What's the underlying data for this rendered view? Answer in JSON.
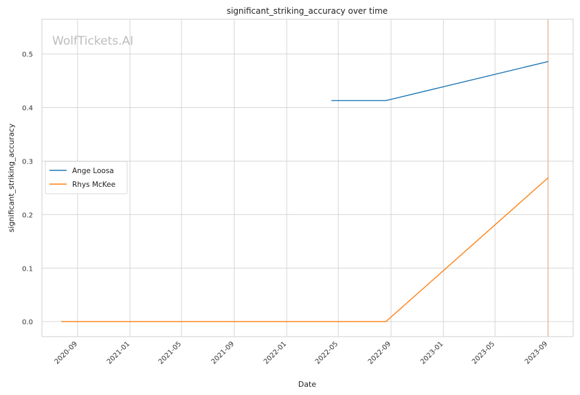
{
  "watermark": "WolfTickets.AI",
  "chart_data": {
    "type": "line",
    "title": "significant_striking_accuracy over time",
    "xlabel": "Date",
    "ylabel": "significant_striking_accuracy",
    "x_ticks": [
      "2020-09",
      "2021-01",
      "2021-05",
      "2021-09",
      "2022-01",
      "2022-05",
      "2022-09",
      "2023-01",
      "2023-05",
      "2023-09"
    ],
    "y_ticks": [
      "0.0",
      "0.1",
      "0.2",
      "0.3",
      "0.4",
      "0.5"
    ],
    "ylim": [
      -0.028,
      0.565
    ],
    "xlim": [
      "2020-06-10",
      "2023-10-30"
    ],
    "grid": true,
    "legend_position": "center-left",
    "series": [
      {
        "name": "Ange Loosa",
        "color": "#1f77b4",
        "points": [
          {
            "x": "2022-04-15",
            "y": 0.413
          },
          {
            "x": "2022-08-20",
            "y": 0.413
          },
          {
            "x": "2023-09-02",
            "y": 0.486
          }
        ]
      },
      {
        "name": "Rhys McKee",
        "color": "#ff7f0e",
        "points": [
          {
            "x": "2020-07-25",
            "y": 0.0
          },
          {
            "x": "2022-08-20",
            "y": 0.0
          },
          {
            "x": "2023-09-02",
            "y": 0.269
          }
        ]
      }
    ],
    "annotations": [
      {
        "type": "vertical-line",
        "x": "2023-09-02",
        "color": "#f4b08a"
      }
    ]
  }
}
